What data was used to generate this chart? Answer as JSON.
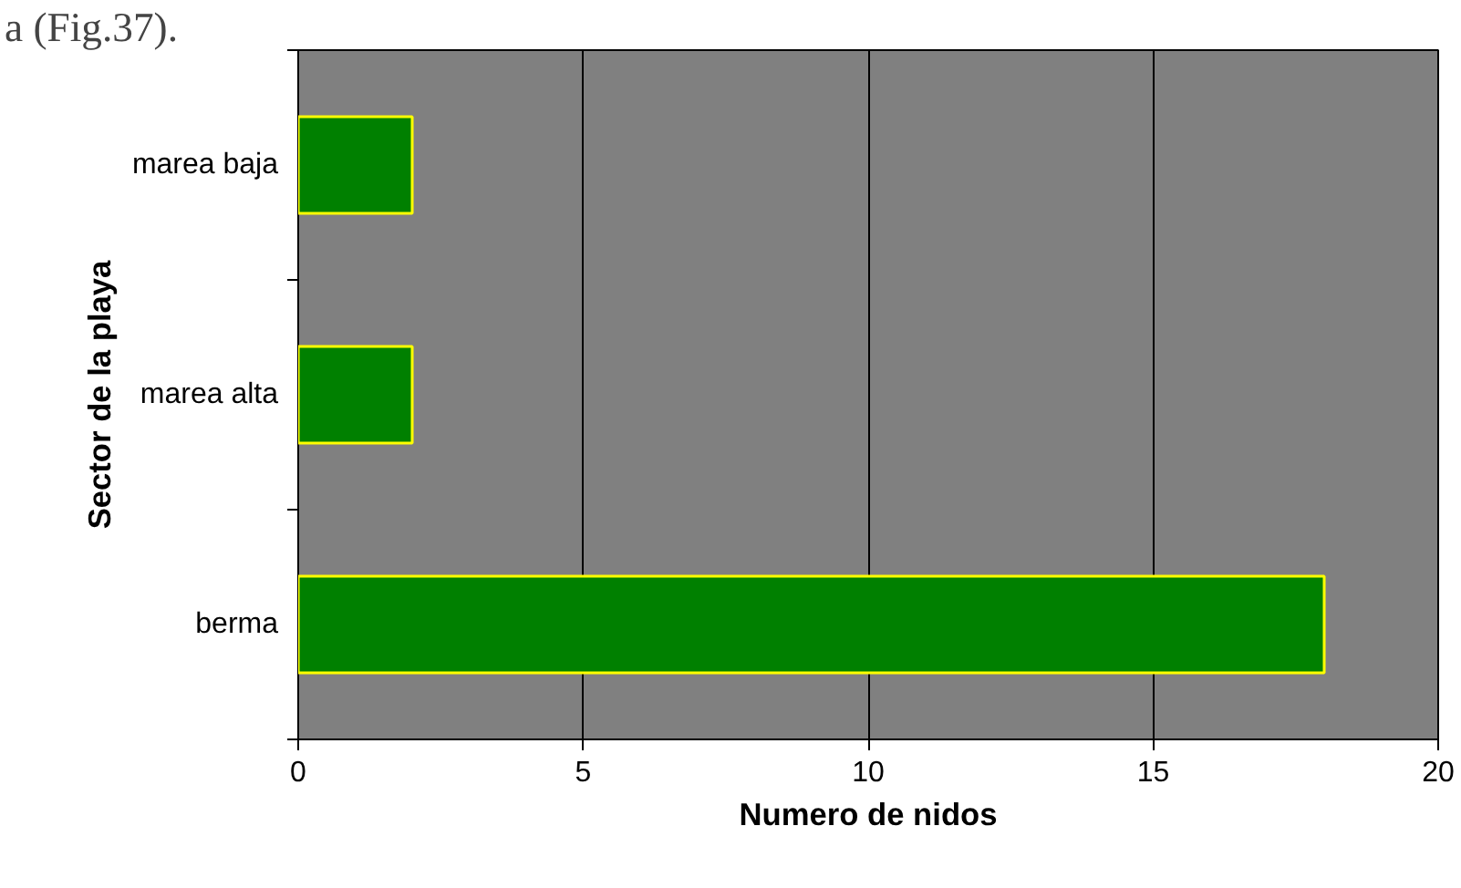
{
  "chart_data": {
    "type": "bar",
    "orientation": "horizontal",
    "categories": [
      "marea baja",
      "marea alta",
      "berma"
    ],
    "values": [
      2,
      2,
      18
    ],
    "color": "#008000",
    "xlim": [
      0,
      20
    ],
    "xticks": [
      0,
      5,
      10,
      15,
      20
    ],
    "grid": "x",
    "xlabel": "Numero de nidos",
    "ylabel": "Sector de la playa",
    "annotations": [
      "a (Fig.37)."
    ]
  }
}
